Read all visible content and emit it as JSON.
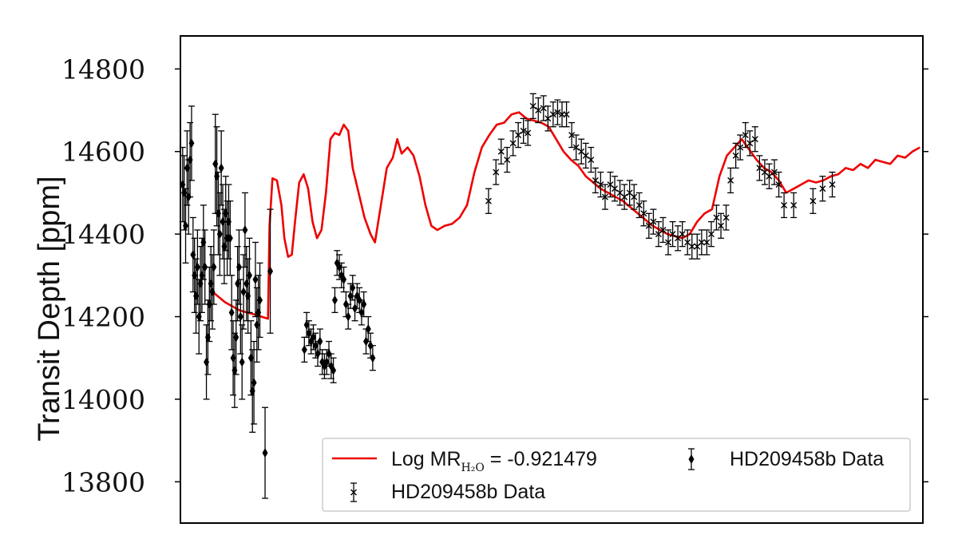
{
  "chart_data": {
    "type": "scatter",
    "ylabel": "Transit Depth [ppm]",
    "xlabel": "",
    "ylim": [
      13700,
      14880
    ],
    "xlim": [
      0,
      1
    ],
    "yticks": [
      13800,
      14000,
      14200,
      14400,
      14600,
      14800
    ],
    "x_tick_labels_shown": false,
    "grid": false,
    "legend_position": "bottom-right",
    "legend": {
      "model_label_prefix": "Log MR",
      "model_label_sub": "H₂O",
      "model_label_suffix": " = -0.921479",
      "cross_label": "HD209458b Data",
      "diamond_label": "HD209458b Data"
    },
    "colors": {
      "model": "#ee0000",
      "data": "#000000"
    },
    "series": [
      {
        "name": "Log MR H2O = -0.921479",
        "kind": "line",
        "points": [
          [
            0.04,
            14265
          ],
          [
            0.06,
            14235
          ],
          [
            0.08,
            14215
          ],
          [
            0.1,
            14205
          ],
          [
            0.118,
            14195
          ],
          [
            0.12,
            14420
          ],
          [
            0.124,
            14535
          ],
          [
            0.13,
            14530
          ],
          [
            0.136,
            14470
          ],
          [
            0.14,
            14390
          ],
          [
            0.145,
            14345
          ],
          [
            0.15,
            14350
          ],
          [
            0.155,
            14440
          ],
          [
            0.16,
            14525
          ],
          [
            0.166,
            14545
          ],
          [
            0.172,
            14510
          ],
          [
            0.178,
            14430
          ],
          [
            0.184,
            14390
          ],
          [
            0.19,
            14410
          ],
          [
            0.196,
            14500
          ],
          [
            0.202,
            14630
          ],
          [
            0.208,
            14645
          ],
          [
            0.214,
            14640
          ],
          [
            0.22,
            14665
          ],
          [
            0.226,
            14650
          ],
          [
            0.232,
            14560
          ],
          [
            0.24,
            14500
          ],
          [
            0.248,
            14440
          ],
          [
            0.256,
            14400
          ],
          [
            0.262,
            14380
          ],
          [
            0.27,
            14470
          ],
          [
            0.278,
            14560
          ],
          [
            0.286,
            14585
          ],
          [
            0.292,
            14630
          ],
          [
            0.298,
            14595
          ],
          [
            0.306,
            14610
          ],
          [
            0.314,
            14590
          ],
          [
            0.322,
            14540
          ],
          [
            0.33,
            14470
          ],
          [
            0.338,
            14420
          ],
          [
            0.346,
            14410
          ],
          [
            0.356,
            14420
          ],
          [
            0.366,
            14425
          ],
          [
            0.376,
            14440
          ],
          [
            0.386,
            14470
          ],
          [
            0.396,
            14550
          ],
          [
            0.406,
            14610
          ],
          [
            0.416,
            14640
          ],
          [
            0.426,
            14665
          ],
          [
            0.436,
            14670
          ],
          [
            0.446,
            14690
          ],
          [
            0.456,
            14695
          ],
          [
            0.466,
            14680
          ],
          [
            0.476,
            14675
          ],
          [
            0.486,
            14670
          ],
          [
            0.496,
            14660
          ],
          [
            0.506,
            14630
          ],
          [
            0.516,
            14600
          ],
          [
            0.526,
            14580
          ],
          [
            0.536,
            14565
          ],
          [
            0.546,
            14540
          ],
          [
            0.556,
            14525
          ],
          [
            0.566,
            14510
          ],
          [
            0.576,
            14500
          ],
          [
            0.586,
            14490
          ],
          [
            0.596,
            14480
          ],
          [
            0.606,
            14465
          ],
          [
            0.616,
            14450
          ],
          [
            0.626,
            14435
          ],
          [
            0.636,
            14420
          ],
          [
            0.646,
            14410
          ],
          [
            0.656,
            14400
          ],
          [
            0.666,
            14395
          ],
          [
            0.676,
            14390
          ],
          [
            0.686,
            14400
          ],
          [
            0.696,
            14430
          ],
          [
            0.706,
            14450
          ],
          [
            0.716,
            14460
          ],
          [
            0.726,
            14540
          ],
          [
            0.736,
            14590
          ],
          [
            0.746,
            14610
          ],
          [
            0.756,
            14630
          ],
          [
            0.766,
            14605
          ],
          [
            0.776,
            14580
          ],
          [
            0.786,
            14560
          ],
          [
            0.796,
            14550
          ],
          [
            0.806,
            14530
          ],
          [
            0.816,
            14500
          ],
          [
            0.826,
            14510
          ],
          [
            0.836,
            14520
          ],
          [
            0.846,
            14530
          ],
          [
            0.856,
            14525
          ],
          [
            0.866,
            14530
          ],
          [
            0.876,
            14540
          ],
          [
            0.886,
            14545
          ],
          [
            0.896,
            14560
          ],
          [
            0.906,
            14555
          ],
          [
            0.916,
            14570
          ],
          [
            0.926,
            14560
          ],
          [
            0.936,
            14580
          ],
          [
            0.946,
            14575
          ],
          [
            0.956,
            14570
          ],
          [
            0.966,
            14590
          ],
          [
            0.976,
            14585
          ],
          [
            0.986,
            14600
          ],
          [
            0.996,
            14610
          ]
        ]
      },
      {
        "name": "HD209458b Data",
        "kind": "cross",
        "points": [
          [
            0.415,
            14480,
            30
          ],
          [
            0.425,
            14550,
            30
          ],
          [
            0.432,
            14600,
            30
          ],
          [
            0.44,
            14580,
            30
          ],
          [
            0.448,
            14620,
            30
          ],
          [
            0.455,
            14640,
            30
          ],
          [
            0.462,
            14650,
            30
          ],
          [
            0.468,
            14645,
            30
          ],
          [
            0.475,
            14710,
            30
          ],
          [
            0.482,
            14700,
            30
          ],
          [
            0.489,
            14705,
            30
          ],
          [
            0.495,
            14680,
            30
          ],
          [
            0.502,
            14690,
            30
          ],
          [
            0.508,
            14695,
            30
          ],
          [
            0.514,
            14690,
            30
          ],
          [
            0.52,
            14690,
            30
          ],
          [
            0.527,
            14640,
            30
          ],
          [
            0.533,
            14610,
            30
          ],
          [
            0.54,
            14600,
            30
          ],
          [
            0.546,
            14590,
            30
          ],
          [
            0.553,
            14580,
            30
          ],
          [
            0.559,
            14530,
            30
          ],
          [
            0.566,
            14520,
            30
          ],
          [
            0.572,
            14490,
            30
          ],
          [
            0.579,
            14520,
            30
          ],
          [
            0.585,
            14510,
            30
          ],
          [
            0.592,
            14500,
            30
          ],
          [
            0.598,
            14490,
            30
          ],
          [
            0.605,
            14500,
            30
          ],
          [
            0.611,
            14490,
            30
          ],
          [
            0.618,
            14470,
            30
          ],
          [
            0.624,
            14450,
            30
          ],
          [
            0.631,
            14420,
            30
          ],
          [
            0.637,
            14430,
            30
          ],
          [
            0.644,
            14400,
            30
          ],
          [
            0.65,
            14410,
            30
          ],
          [
            0.657,
            14380,
            30
          ],
          [
            0.663,
            14400,
            30
          ],
          [
            0.67,
            14390,
            30
          ],
          [
            0.676,
            14400,
            30
          ],
          [
            0.683,
            14380,
            30
          ],
          [
            0.689,
            14370,
            30
          ],
          [
            0.696,
            14370,
            30
          ],
          [
            0.702,
            14380,
            30
          ],
          [
            0.709,
            14380,
            30
          ],
          [
            0.715,
            14400,
            30
          ],
          [
            0.722,
            14440,
            30
          ],
          [
            0.728,
            14420,
            30
          ],
          [
            0.735,
            14440,
            30
          ],
          [
            0.741,
            14530,
            30
          ],
          [
            0.748,
            14590,
            30
          ],
          [
            0.754,
            14610,
            30
          ],
          [
            0.761,
            14640,
            30
          ],
          [
            0.767,
            14620,
            30
          ],
          [
            0.774,
            14630,
            30
          ],
          [
            0.78,
            14560,
            30
          ],
          [
            0.787,
            14550,
            30
          ],
          [
            0.793,
            14540,
            30
          ],
          [
            0.8,
            14550,
            30
          ],
          [
            0.806,
            14520,
            30
          ],
          [
            0.813,
            14470,
            30
          ],
          [
            0.826,
            14470,
            30
          ],
          [
            0.852,
            14480,
            30
          ],
          [
            0.865,
            14510,
            30
          ],
          [
            0.878,
            14520,
            30
          ]
        ]
      },
      {
        "name": "HD209458b Data",
        "kind": "diamond",
        "points": [
          [
            0.003,
            14520,
            90
          ],
          [
            0.005,
            14500,
            90
          ],
          [
            0.007,
            14420,
            90
          ],
          [
            0.009,
            14560,
            90
          ],
          [
            0.011,
            14490,
            90
          ],
          [
            0.013,
            14580,
            90
          ],
          [
            0.015,
            14620,
            90
          ],
          [
            0.017,
            14350,
            90
          ],
          [
            0.019,
            14300,
            90
          ],
          [
            0.021,
            14250,
            90
          ],
          [
            0.023,
            14320,
            90
          ],
          [
            0.025,
            14200,
            90
          ],
          [
            0.027,
            14280,
            90
          ],
          [
            0.029,
            14300,
            90
          ],
          [
            0.031,
            14380,
            90
          ],
          [
            0.033,
            14320,
            90
          ],
          [
            0.035,
            14090,
            90
          ],
          [
            0.037,
            14150,
            90
          ],
          [
            0.039,
            14230,
            90
          ],
          [
            0.041,
            14280,
            90
          ],
          [
            0.043,
            14260,
            90
          ],
          [
            0.045,
            14320,
            90
          ],
          [
            0.047,
            14570,
            120
          ],
          [
            0.049,
            14540,
            120
          ],
          [
            0.051,
            14450,
            100
          ],
          [
            0.053,
            14400,
            100
          ],
          [
            0.055,
            14560,
            90
          ],
          [
            0.057,
            14430,
            90
          ],
          [
            0.059,
            14370,
            90
          ],
          [
            0.061,
            14450,
            90
          ],
          [
            0.063,
            14390,
            90
          ],
          [
            0.065,
            14430,
            90
          ],
          [
            0.067,
            14390,
            90
          ],
          [
            0.069,
            14210,
            90
          ],
          [
            0.071,
            14100,
            90
          ],
          [
            0.073,
            14070,
            90
          ],
          [
            0.075,
            14150,
            90
          ],
          [
            0.077,
            14280,
            90
          ],
          [
            0.079,
            14320,
            90
          ],
          [
            0.081,
            14200,
            90
          ],
          [
            0.083,
            14090,
            90
          ],
          [
            0.085,
            14260,
            90
          ],
          [
            0.087,
            14410,
            90
          ],
          [
            0.089,
            14280,
            90
          ],
          [
            0.091,
            14250,
            90
          ],
          [
            0.093,
            14300,
            90
          ],
          [
            0.095,
            14100,
            90
          ],
          [
            0.097,
            14020,
            100
          ],
          [
            0.099,
            14040,
            100
          ],
          [
            0.101,
            14290,
            90
          ],
          [
            0.103,
            14180,
            90
          ],
          [
            0.105,
            14210,
            90
          ],
          [
            0.107,
            14240,
            90
          ],
          [
            0.114,
            13870,
            110
          ],
          [
            0.121,
            14310,
            150
          ],
          [
            0.167,
            14120,
            30
          ],
          [
            0.17,
            14180,
            30
          ],
          [
            0.173,
            14160,
            30
          ],
          [
            0.176,
            14140,
            30
          ],
          [
            0.179,
            14150,
            30
          ],
          [
            0.182,
            14130,
            30
          ],
          [
            0.185,
            14110,
            30
          ],
          [
            0.188,
            14140,
            30
          ],
          [
            0.191,
            14090,
            30
          ],
          [
            0.194,
            14080,
            30
          ],
          [
            0.197,
            14090,
            30
          ],
          [
            0.2,
            14110,
            30
          ],
          [
            0.203,
            14080,
            30
          ],
          [
            0.206,
            14070,
            30
          ],
          [
            0.208,
            14240,
            30
          ],
          [
            0.211,
            14330,
            30
          ],
          [
            0.214,
            14320,
            30
          ],
          [
            0.217,
            14300,
            30
          ],
          [
            0.22,
            14290,
            30
          ],
          [
            0.223,
            14230,
            30
          ],
          [
            0.226,
            14200,
            30
          ],
          [
            0.229,
            14250,
            30
          ],
          [
            0.232,
            14270,
            30
          ],
          [
            0.235,
            14220,
            30
          ],
          [
            0.238,
            14250,
            30
          ],
          [
            0.241,
            14240,
            30
          ],
          [
            0.244,
            14210,
            30
          ],
          [
            0.247,
            14230,
            30
          ],
          [
            0.25,
            14140,
            30
          ],
          [
            0.253,
            14170,
            30
          ],
          [
            0.256,
            14130,
            30
          ],
          [
            0.259,
            14100,
            30
          ]
        ]
      }
    ]
  }
}
